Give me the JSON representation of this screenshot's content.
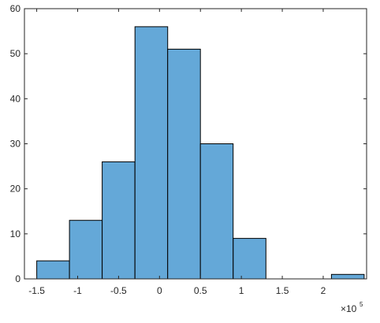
{
  "chart_data": {
    "type": "histogram",
    "bins": [
      {
        "start": -150000,
        "end": -110000,
        "count": 4
      },
      {
        "start": -110000,
        "end": -70000,
        "count": 13
      },
      {
        "start": -70000,
        "end": -30000,
        "count": 26
      },
      {
        "start": -30000,
        "end": 10000,
        "count": 56
      },
      {
        "start": 10000,
        "end": 50000,
        "count": 51
      },
      {
        "start": 50000,
        "end": 90000,
        "count": 30
      },
      {
        "start": 90000,
        "end": 130000,
        "count": 9
      },
      {
        "start": 130000,
        "end": 170000,
        "count": 0
      },
      {
        "start": 170000,
        "end": 210000,
        "count": 0
      },
      {
        "start": 210000,
        "end": 250000,
        "count": 1
      }
    ],
    "xlim": [
      -1.65,
      2.53
    ],
    "ylim": [
      0,
      60
    ],
    "x_scale_factor": 100000,
    "x_ticks": [
      {
        "value": -1.5,
        "label": "-1.5"
      },
      {
        "value": -1,
        "label": "-1"
      },
      {
        "value": -0.5,
        "label": "-0.5"
      },
      {
        "value": 0,
        "label": "0"
      },
      {
        "value": 0.5,
        "label": "0.5"
      },
      {
        "value": 1,
        "label": "1"
      },
      {
        "value": 1.5,
        "label": "1.5"
      },
      {
        "value": 2,
        "label": "2"
      }
    ],
    "y_ticks": [
      {
        "value": 0,
        "label": "0"
      },
      {
        "value": 10,
        "label": "10"
      },
      {
        "value": 20,
        "label": "20"
      },
      {
        "value": 30,
        "label": "30"
      },
      {
        "value": 40,
        "label": "40"
      },
      {
        "value": 50,
        "label": "50"
      },
      {
        "value": 60,
        "label": "60"
      }
    ],
    "exponent": {
      "base": "×10",
      "power": "5"
    },
    "bar_color": "#64a8d8",
    "edge_color": "#000000",
    "axis_color": "#262626",
    "grid": false
  }
}
